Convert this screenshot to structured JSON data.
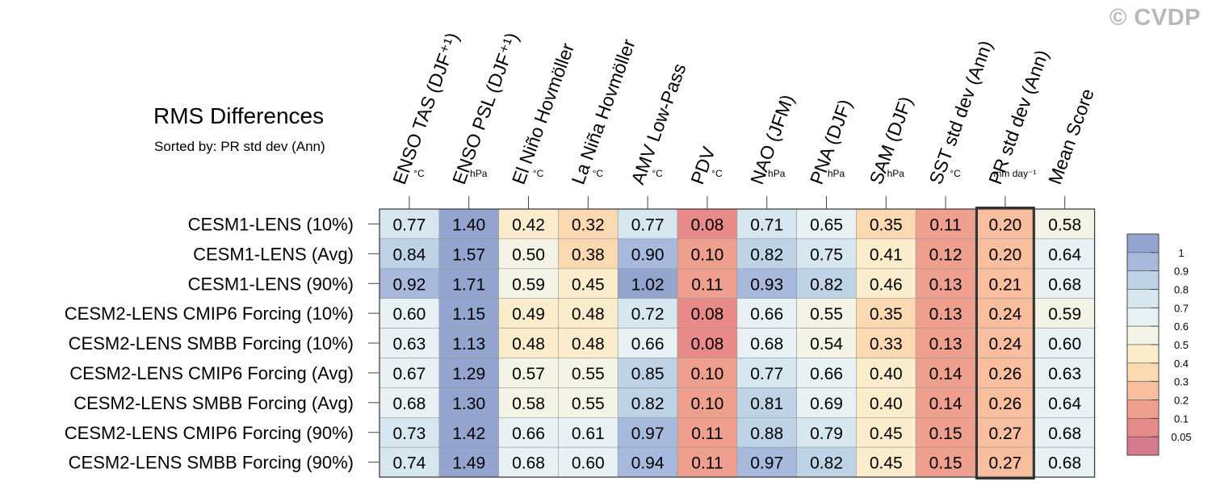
{
  "copyright": "© CVDP",
  "chart_data": {
    "type": "heatmap",
    "title": "RMS Differences",
    "subtitle": "Sorted by: PR std dev (Ann)",
    "columns": [
      {
        "label": "ENSO TAS (DJF⁺¹)",
        "unit": "°C"
      },
      {
        "label": "ENSO PSL (DJF⁺¹)",
        "unit": "hPa"
      },
      {
        "label": "El Niño Hovmöller",
        "unit": "°C"
      },
      {
        "label": "La Niña Hovmöller",
        "unit": "°C"
      },
      {
        "label": "AMV Low-Pass",
        "unit": "°C"
      },
      {
        "label": "PDV",
        "unit": "°C"
      },
      {
        "label": "NAO (JFM)",
        "unit": "hPa"
      },
      {
        "label": "PNA (DJF)",
        "unit": "hPa"
      },
      {
        "label": "SAM (DJF)",
        "unit": "hPa"
      },
      {
        "label": "SST std dev (Ann)",
        "unit": "°C"
      },
      {
        "label": "PR std dev (Ann)",
        "unit": "mm day⁻¹"
      },
      {
        "label": "Mean Score",
        "unit": ""
      }
    ],
    "rows": [
      "CESM1-LENS (10%)",
      "CESM1-LENS (Avg)",
      "CESM1-LENS (90%)",
      "CESM2-LENS CMIP6 Forcing (10%)",
      "CESM2-LENS SMBB Forcing (10%)",
      "CESM2-LENS CMIP6 Forcing (Avg)",
      "CESM2-LENS SMBB Forcing (Avg)",
      "CESM2-LENS CMIP6 Forcing (90%)",
      "CESM2-LENS SMBB Forcing (90%)"
    ],
    "values": [
      [
        "0.77",
        "1.40",
        "0.42",
        "0.32",
        "0.77",
        "0.08",
        "0.71",
        "0.65",
        "0.35",
        "0.11",
        "0.20",
        "0.58"
      ],
      [
        "0.84",
        "1.57",
        "0.50",
        "0.38",
        "0.90",
        "0.10",
        "0.82",
        "0.75",
        "0.41",
        "0.12",
        "0.20",
        "0.64"
      ],
      [
        "0.92",
        "1.71",
        "0.59",
        "0.45",
        "1.02",
        "0.11",
        "0.93",
        "0.82",
        "0.46",
        "0.13",
        "0.21",
        "0.68"
      ],
      [
        "0.60",
        "1.15",
        "0.49",
        "0.48",
        "0.72",
        "0.08",
        "0.66",
        "0.55",
        "0.35",
        "0.13",
        "0.24",
        "0.59"
      ],
      [
        "0.63",
        "1.13",
        "0.48",
        "0.48",
        "0.66",
        "0.08",
        "0.68",
        "0.54",
        "0.33",
        "0.13",
        "0.24",
        "0.60"
      ],
      [
        "0.67",
        "1.29",
        "0.57",
        "0.55",
        "0.85",
        "0.10",
        "0.77",
        "0.66",
        "0.40",
        "0.14",
        "0.26",
        "0.63"
      ],
      [
        "0.68",
        "1.30",
        "0.58",
        "0.55",
        "0.82",
        "0.10",
        "0.81",
        "0.69",
        "0.40",
        "0.14",
        "0.26",
        "0.64"
      ],
      [
        "0.73",
        "1.42",
        "0.66",
        "0.61",
        "0.97",
        "0.11",
        "0.88",
        "0.79",
        "0.45",
        "0.15",
        "0.27",
        "0.68"
      ],
      [
        "0.74",
        "1.49",
        "0.68",
        "0.60",
        "0.94",
        "0.11",
        "0.97",
        "0.82",
        "0.45",
        "0.15",
        "0.27",
        "0.68"
      ]
    ],
    "highlighted_column": "PR std dev (Ann)",
    "colorbar": {
      "levels": [
        "1",
        "0.9",
        "0.8",
        "0.7",
        "0.6",
        "0.5",
        "0.4",
        "0.3",
        "0.2",
        "0.1",
        "0.05"
      ],
      "colors": [
        "#93a5cf",
        "#a7badd",
        "#bfd3e6",
        "#d7e7f0",
        "#e8f1f3",
        "#f3f3e6",
        "#fbeccb",
        "#fbd9b1",
        "#f8be9e",
        "#ee9f8d",
        "#e88a87",
        "#d67b8d"
      ]
    }
  }
}
